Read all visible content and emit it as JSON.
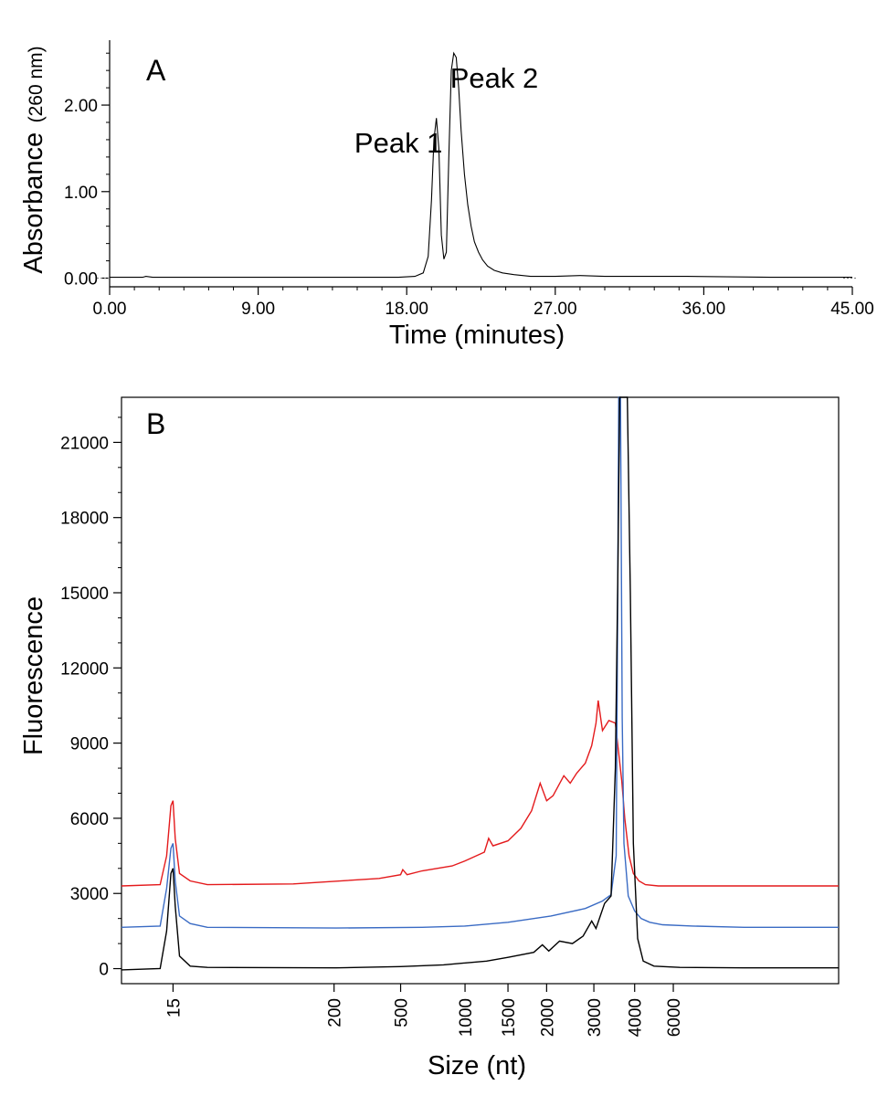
{
  "chart_data": [
    {
      "panel": "A",
      "type": "line",
      "panel_label": "A",
      "xlabel": "Time (minutes)",
      "ylabel_main": "Absorbance",
      "ylabel_sub": "(260 nm)",
      "xlim": [
        0,
        45
      ],
      "ylim": [
        -0.1,
        2.75
      ],
      "x_ticks": [
        {
          "value": 0,
          "label": "0.00"
        },
        {
          "value": 9,
          "label": "9.00"
        },
        {
          "value": 18,
          "label": "18.00"
        },
        {
          "value": 27,
          "label": "27.00"
        },
        {
          "value": 36,
          "label": "36.00"
        },
        {
          "value": 45,
          "label": "45.00"
        }
      ],
      "y_ticks": [
        {
          "value": 0,
          "label": "0.00"
        },
        {
          "value": 1,
          "label": "1.00"
        },
        {
          "value": 2,
          "label": "2.00"
        }
      ],
      "annotations": [
        {
          "text": "Peak 1",
          "x": 17.5,
          "y": 1.45
        },
        {
          "text": "Peak 2",
          "x": 23.3,
          "y": 2.2
        }
      ],
      "series": [
        {
          "name": "Absorbance",
          "color": "#000000",
          "x": [
            0,
            2,
            2.2,
            2.6,
            10,
            17.5,
            18.5,
            19.0,
            19.3,
            19.5,
            19.65,
            19.8,
            19.95,
            20.1,
            20.25,
            20.4,
            20.55,
            20.7,
            20.85,
            21.0,
            21.15,
            21.3,
            21.5,
            21.7,
            21.9,
            22.1,
            22.35,
            22.6,
            22.9,
            23.3,
            23.8,
            24.5,
            25.5,
            27,
            28.5,
            30,
            35,
            40,
            45
          ],
          "y": [
            0.01,
            0.01,
            0.02,
            0.01,
            0.01,
            0.01,
            0.02,
            0.06,
            0.25,
            0.9,
            1.6,
            1.85,
            1.5,
            0.5,
            0.22,
            0.3,
            1.4,
            2.4,
            2.6,
            2.55,
            2.2,
            1.7,
            1.2,
            0.85,
            0.6,
            0.42,
            0.3,
            0.21,
            0.14,
            0.09,
            0.06,
            0.04,
            0.02,
            0.02,
            0.03,
            0.02,
            0.02,
            0.01,
            0.01
          ]
        }
      ]
    },
    {
      "panel": "B",
      "type": "line",
      "panel_label": "B",
      "xlabel": "Size (nt)",
      "ylabel": "Fluorescence",
      "xlim": [
        -9,
        7.7
      ],
      "ylim": [
        -600,
        22800
      ],
      "x_ticks": [
        {
          "value": -7.8,
          "label": "15"
        },
        {
          "value": -4.05,
          "label": "200"
        },
        {
          "value": -2.5,
          "label": "500"
        },
        {
          "value": -1.0,
          "label": "1000"
        },
        {
          "value": 0.0,
          "label": "1500"
        },
        {
          "value": 0.9,
          "label": "2000"
        },
        {
          "value": 2.0,
          "label": "3000"
        },
        {
          "value": 2.95,
          "label": "4000"
        },
        {
          "value": 3.85,
          "label": "6000"
        }
      ],
      "y_ticks": [
        {
          "value": 0,
          "label": "0"
        },
        {
          "value": 3000,
          "label": "3000"
        },
        {
          "value": 6000,
          "label": "6000"
        },
        {
          "value": 9000,
          "label": "9000"
        },
        {
          "value": 12000,
          "label": "12000"
        },
        {
          "value": 15000,
          "label": "15000"
        },
        {
          "value": 18000,
          "label": "18000"
        },
        {
          "value": 21000,
          "label": "21000"
        }
      ],
      "series": [
        {
          "name": "red trace",
          "color": "#e41a1c",
          "x": [
            -9,
            -8.1,
            -7.95,
            -7.85,
            -7.8,
            -7.75,
            -7.65,
            -7.4,
            -7.0,
            -5,
            -3.0,
            -2.5,
            -2.45,
            -2.35,
            -2.0,
            -1.3,
            -1.0,
            -0.55,
            -0.45,
            -0.35,
            0.0,
            0.3,
            0.55,
            0.75,
            0.9,
            1.05,
            1.3,
            1.45,
            1.6,
            1.8,
            1.95,
            2.05,
            2.1,
            2.2,
            2.35,
            2.5,
            2.65,
            2.72,
            2.82,
            2.92,
            3.05,
            3.2,
            3.5,
            4.0,
            5.0,
            7.7
          ],
          "y": [
            3300,
            3350,
            4500,
            6500,
            6700,
            5200,
            3800,
            3500,
            3350,
            3380,
            3600,
            3750,
            3950,
            3750,
            3900,
            4100,
            4300,
            4650,
            5200,
            4900,
            5100,
            5600,
            6300,
            7400,
            6700,
            6900,
            7700,
            7400,
            7800,
            8200,
            8900,
            9800,
            10700,
            9500,
            9900,
            9800,
            7500,
            6000,
            4500,
            3800,
            3500,
            3350,
            3300,
            3300,
            3300,
            3300
          ]
        },
        {
          "name": "blue trace",
          "color": "#3a6bc4",
          "x": [
            -9,
            -8.1,
            -7.95,
            -7.85,
            -7.8,
            -7.75,
            -7.65,
            -7.4,
            -7.0,
            -4.0,
            -2.0,
            -1.0,
            0.0,
            1.0,
            1.8,
            2.2,
            2.4,
            2.52,
            2.55,
            2.58,
            2.62,
            2.66,
            2.7,
            2.8,
            2.95,
            3.1,
            3.3,
            3.6,
            4.3,
            5.5,
            7.7
          ],
          "y": [
            1650,
            1700,
            3200,
            4800,
            5000,
            3500,
            2100,
            1800,
            1650,
            1620,
            1650,
            1700,
            1850,
            2100,
            2400,
            2700,
            2950,
            4500,
            13000,
            22800,
            22800,
            10000,
            5000,
            2900,
            2300,
            2000,
            1850,
            1750,
            1700,
            1650,
            1650
          ]
        },
        {
          "name": "black trace",
          "color": "#000000",
          "x": [
            -9,
            -8.1,
            -7.95,
            -7.85,
            -7.8,
            -7.75,
            -7.65,
            -7.4,
            -7.0,
            -4.0,
            -2.5,
            -1.5,
            -0.5,
            0.0,
            0.6,
            0.8,
            0.95,
            1.2,
            1.5,
            1.75,
            1.95,
            2.05,
            2.15,
            2.25,
            2.4,
            2.5,
            2.56,
            2.6,
            2.66,
            2.72,
            2.78,
            2.85,
            2.92,
            3.02,
            3.15,
            3.4,
            4.0,
            5.5,
            7.7
          ],
          "y": [
            -50,
            0,
            1500,
            3800,
            4000,
            2500,
            500,
            100,
            50,
            30,
            80,
            150,
            300,
            450,
            650,
            950,
            700,
            1100,
            1000,
            1300,
            1900,
            1600,
            2100,
            2600,
            2900,
            8000,
            16000,
            22800,
            22800,
            22800,
            22800,
            15000,
            5000,
            1200,
            300,
            100,
            50,
            30,
            30
          ]
        }
      ]
    }
  ]
}
